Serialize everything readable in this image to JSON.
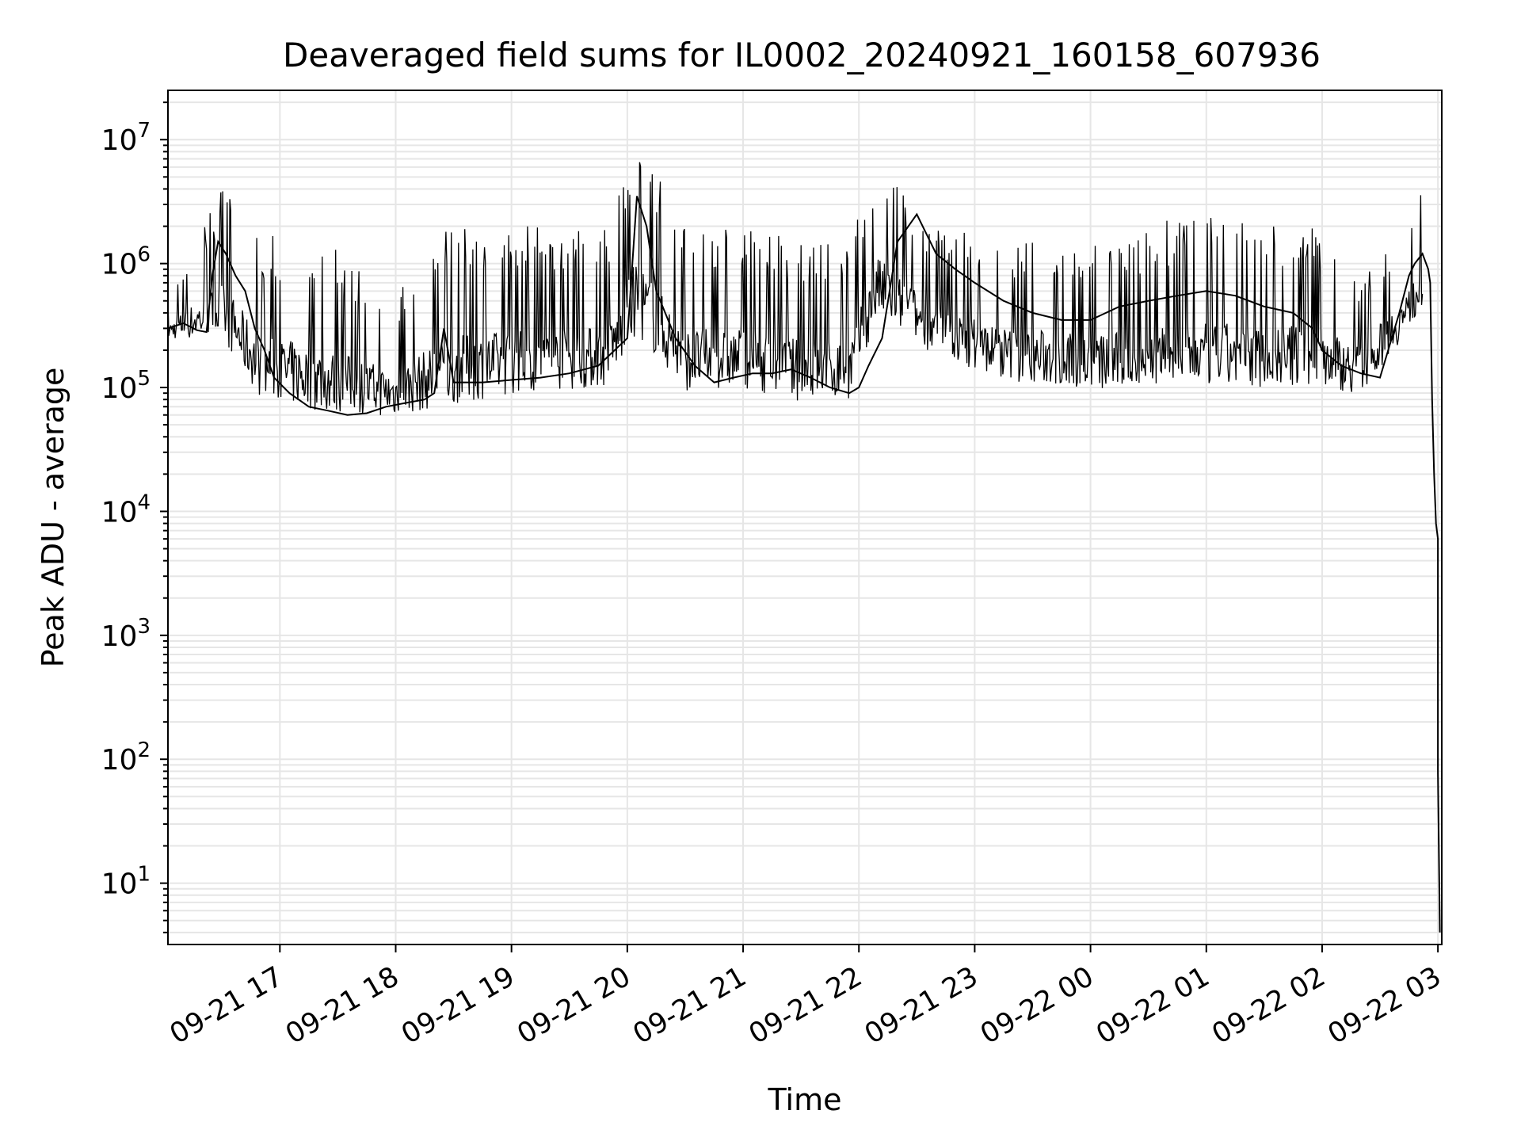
{
  "chart_data": {
    "type": "line",
    "title": "Deaveraged field sums for IL0002_20240921_160158_607936",
    "xlabel": "Time",
    "ylabel": "Peak ADU - average",
    "yscale": "log",
    "ylim": [
      3.2,
      25000000
    ],
    "xlim": [
      "2024-09-21 16:02",
      "2024-09-22 03:02"
    ],
    "x_ticks": [
      "09-21 17",
      "09-21 18",
      "09-21 19",
      "09-21 20",
      "09-21 21",
      "09-21 22",
      "09-21 23",
      "09-22 00",
      "09-22 01",
      "09-22 02",
      "09-22 03"
    ],
    "y_ticks": [
      {
        "base": "10",
        "exp": "1",
        "value": 10
      },
      {
        "base": "10",
        "exp": "2",
        "value": 100
      },
      {
        "base": "10",
        "exp": "3",
        "value": 1000
      },
      {
        "base": "10",
        "exp": "4",
        "value": 10000
      },
      {
        "base": "10",
        "exp": "5",
        "value": 100000
      },
      {
        "base": "10",
        "exp": "6",
        "value": 1000000
      },
      {
        "base": "10",
        "exp": "7",
        "value": 10000000
      }
    ],
    "grid": true,
    "line_color": "#000000",
    "series": [
      {
        "x": [
          "2024-09-21 16:02",
          "2024-09-21 16:10",
          "2024-09-21 16:17",
          "2024-09-21 16:22",
          "2024-09-21 16:25",
          "2024-09-21 16:28",
          "2024-09-21 16:32",
          "2024-09-21 16:37",
          "2024-09-21 16:42",
          "2024-09-21 16:47",
          "2024-09-21 16:52",
          "2024-09-21 16:57",
          "2024-09-21 17:05",
          "2024-09-21 17:15",
          "2024-09-21 17:25",
          "2024-09-21 17:35",
          "2024-09-21 17:45",
          "2024-09-21 17:55",
          "2024-09-21 18:05",
          "2024-09-21 18:15",
          "2024-09-21 18:20",
          "2024-09-21 18:25",
          "2024-09-21 18:30",
          "2024-09-21 18:45",
          "2024-09-21 19:00",
          "2024-09-21 19:15",
          "2024-09-21 19:30",
          "2024-09-21 19:45",
          "2024-09-21 20:00",
          "2024-09-21 20:05",
          "2024-09-21 20:10",
          "2024-09-21 20:15",
          "2024-09-21 20:25",
          "2024-09-21 20:35",
          "2024-09-21 20:45",
          "2024-09-21 20:55",
          "2024-09-21 21:05",
          "2024-09-21 21:15",
          "2024-09-21 21:25",
          "2024-09-21 21:35",
          "2024-09-21 21:45",
          "2024-09-21 21:55",
          "2024-09-21 22:00",
          "2024-09-21 22:05",
          "2024-09-21 22:12",
          "2024-09-21 22:20",
          "2024-09-21 22:30",
          "2024-09-21 22:40",
          "2024-09-21 22:50",
          "2024-09-21 23:00",
          "2024-09-21 23:15",
          "2024-09-21 23:30",
          "2024-09-21 23:45",
          "2024-09-22 00:00",
          "2024-09-22 00:15",
          "2024-09-22 00:30",
          "2024-09-22 00:45",
          "2024-09-22 01:00",
          "2024-09-22 01:15",
          "2024-09-22 01:30",
          "2024-09-22 01:45",
          "2024-09-22 01:55",
          "2024-09-22 02:00",
          "2024-09-22 02:10",
          "2024-09-22 02:20",
          "2024-09-22 02:30",
          "2024-09-22 02:40",
          "2024-09-22 02:45",
          "2024-09-22 02:48",
          "2024-09-22 02:52",
          "2024-09-22 02:55",
          "2024-09-22 02:56",
          "2024-09-22 02:57",
          "2024-09-22 02:58",
          "2024-09-22 02:59",
          "2024-09-22 03:00",
          "2024-09-22 03:00",
          "2024-09-22 03:01"
        ],
        "values": [
          300000,
          330000,
          290000,
          280000,
          800000,
          1500000,
          1200000,
          800000,
          600000,
          300000,
          200000,
          120000,
          90000,
          70000,
          65000,
          60000,
          62000,
          70000,
          75000,
          80000,
          90000,
          300000,
          110000,
          110000,
          115000,
          120000,
          130000,
          150000,
          250000,
          3500000,
          2000000,
          600000,
          250000,
          150000,
          110000,
          120000,
          130000,
          130000,
          140000,
          120000,
          100000,
          90000,
          100000,
          150000,
          250000,
          1500000,
          2500000,
          1200000,
          900000,
          700000,
          500000,
          400000,
          350000,
          350000,
          450000,
          500000,
          550000,
          600000,
          550000,
          450000,
          400000,
          300000,
          200000,
          150000,
          130000,
          120000,
          400000,
          800000,
          1000000,
          1200000,
          900000,
          700000,
          80000,
          20000,
          8000,
          6000,
          80,
          4
        ]
      }
    ],
    "envelope": {
      "note": "",
      "x": [
        "2024-09-21 16:02",
        "2024-09-21 16:30",
        "2024-09-21 16:50",
        "2024-09-21 17:20",
        "2024-09-21 18:00",
        "2024-09-21 18:25",
        "2024-09-21 19:00",
        "2024-09-21 19:50",
        "2024-09-21 20:05",
        "2024-09-21 20:30",
        "2024-09-21 21:00",
        "2024-09-21 21:30",
        "2024-09-21 21:55",
        "2024-09-21 22:10",
        "2024-09-21 22:40",
        "2024-09-21 23:20",
        "2024-09-22 00:10",
        "2024-09-22 00:50",
        "2024-09-22 01:30",
        "2024-09-22 02:00",
        "2024-09-22 02:20",
        "2024-09-22 02:45",
        "2024-09-22 02:52"
      ],
      "high": [
        550000,
        4200000,
        1800000,
        1700000,
        600000,
        2100000,
        2100000,
        2100000,
        12000000,
        2000000,
        1900000,
        1700000,
        1500000,
        7000000,
        2000000,
        1600000,
        1600000,
        2500000,
        2200000,
        2000000,
        900000,
        2200000,
        4400000
      ],
      "low": [
        230000,
        200000,
        65000,
        50000,
        48000,
        55000,
        70000,
        80000,
        200000,
        75000,
        80000,
        60000,
        65000,
        300000,
        150000,
        90000,
        75000,
        80000,
        80000,
        80000,
        75000,
        250000,
        400000
      ]
    }
  }
}
